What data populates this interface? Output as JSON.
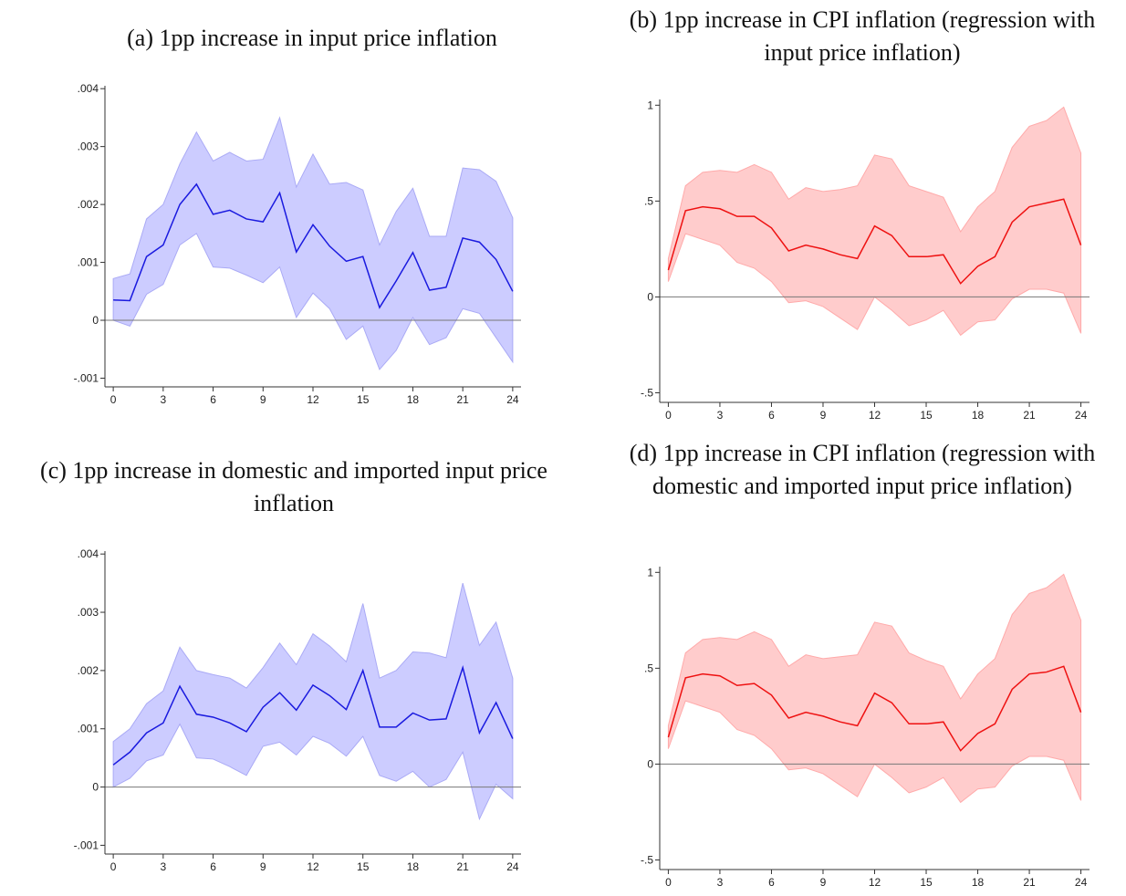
{
  "chart_data": [
    {
      "type": "band-line",
      "title": "(a) 1pp increase in input price inflation",
      "x": [
        0,
        1,
        2,
        3,
        4,
        5,
        6,
        7,
        8,
        9,
        10,
        11,
        12,
        13,
        14,
        15,
        16,
        17,
        18,
        19,
        20,
        21,
        22,
        23,
        24
      ],
      "values": [
        0.00035,
        0.00034,
        0.0011,
        0.0013,
        0.002,
        0.00235,
        0.00183,
        0.0019,
        0.00175,
        0.0017,
        0.0022,
        0.00118,
        0.00165,
        0.00128,
        0.00102,
        0.0011,
        0.00022,
        0.00068,
        0.00117,
        0.00052,
        0.00057,
        0.00142,
        0.00135,
        0.00105,
        0.0005
      ],
      "upper": [
        0.00072,
        0.0008,
        0.00175,
        0.002,
        0.0027,
        0.00325,
        0.00275,
        0.0029,
        0.00275,
        0.00278,
        0.0035,
        0.0023,
        0.00287,
        0.00235,
        0.00238,
        0.00225,
        0.0013,
        0.00188,
        0.00228,
        0.00145,
        0.00145,
        0.00263,
        0.0026,
        0.0024,
        0.00177
      ],
      "lower": [
        0,
        -0.0001,
        0.00045,
        0.00062,
        0.0013,
        0.0015,
        0.00092,
        0.0009,
        0.00078,
        0.00065,
        0.00092,
        5e-05,
        0.00047,
        0.0002,
        -0.00033,
        -0.0001,
        -0.00085,
        -0.00052,
        5e-05,
        -0.00042,
        -0.0003,
        0.0002,
        0.00012,
        -0.0003,
        -0.00072
      ],
      "color": "#1a1adf",
      "band_color": "#ccccff",
      "band_edge": "#aaaaf5",
      "xlim": [
        -0.5,
        24.5
      ],
      "ylim": [
        -0.00115,
        0.00405
      ],
      "xticks": [
        0,
        3,
        6,
        9,
        12,
        15,
        18,
        21,
        24
      ],
      "yticks": [
        {
          "value": -0.001,
          "label": "-.001"
        },
        0,
        {
          "value": 0.001,
          "label": ".001"
        },
        {
          "value": 0.002,
          "label": ".002"
        },
        {
          "value": 0.003,
          "label": ".003"
        },
        {
          "value": 0.004,
          "label": ".004"
        }
      ],
      "zero_line": true
    },
    {
      "type": "band-line",
      "title": "(b) 1pp increase in CPI inflation (regression with input price inflation)",
      "x": [
        0,
        1,
        2,
        3,
        4,
        5,
        6,
        7,
        8,
        9,
        10,
        11,
        12,
        13,
        14,
        15,
        16,
        17,
        18,
        19,
        20,
        21,
        22,
        23,
        24
      ],
      "values": [
        0.14,
        0.45,
        0.47,
        0.46,
        0.42,
        0.42,
        0.36,
        0.24,
        0.27,
        0.25,
        0.22,
        0.2,
        0.37,
        0.32,
        0.21,
        0.21,
        0.22,
        0.07,
        0.16,
        0.21,
        0.39,
        0.47,
        0.49,
        0.51,
        0.27
      ],
      "upper": [
        0.2,
        0.58,
        0.65,
        0.66,
        0.65,
        0.69,
        0.65,
        0.51,
        0.57,
        0.55,
        0.56,
        0.58,
        0.74,
        0.72,
        0.58,
        0.55,
        0.52,
        0.34,
        0.47,
        0.55,
        0.78,
        0.89,
        0.92,
        0.99,
        0.75
      ],
      "lower": [
        0.08,
        0.33,
        0.3,
        0.27,
        0.18,
        0.15,
        0.08,
        -0.03,
        -0.02,
        -0.05,
        -0.11,
        -0.17,
        0,
        -0.07,
        -0.15,
        -0.12,
        -0.07,
        -0.2,
        -0.13,
        -0.12,
        -0.01,
        0.04,
        0.04,
        0.02,
        -0.19
      ],
      "color": "#ee1111",
      "band_color": "#ffcccc",
      "band_edge": "#ffaaaa",
      "xlim": [
        -0.5,
        24.5
      ],
      "ylim": [
        -0.55,
        1.03
      ],
      "xticks": [
        0,
        3,
        6,
        9,
        12,
        15,
        18,
        21,
        24
      ],
      "yticks": [
        {
          "value": -0.5,
          "label": "-.5"
        },
        0,
        {
          "value": 0.5,
          "label": ".5"
        },
        1
      ],
      "zero_line": true
    },
    {
      "type": "band-line",
      "title": "(c) 1pp increase in domestic and imported input price inflation",
      "x": [
        0,
        1,
        2,
        3,
        4,
        5,
        6,
        7,
        8,
        9,
        10,
        11,
        12,
        13,
        14,
        15,
        16,
        17,
        18,
        19,
        20,
        21,
        22,
        23,
        24
      ],
      "values": [
        0.00038,
        0.0006,
        0.00093,
        0.0011,
        0.00173,
        0.00125,
        0.0012,
        0.0011,
        0.00095,
        0.00137,
        0.00162,
        0.00132,
        0.00175,
        0.00157,
        0.00133,
        0.002,
        0.00103,
        0.00103,
        0.00127,
        0.00115,
        0.00117,
        0.00205,
        0.00093,
        0.00145,
        0.00083
      ],
      "upper": [
        0.00078,
        0.001,
        0.00143,
        0.00165,
        0.0024,
        0.002,
        0.00193,
        0.00187,
        0.0017,
        0.00205,
        0.00247,
        0.0021,
        0.00263,
        0.00242,
        0.00215,
        0.00315,
        0.00187,
        0.002,
        0.00232,
        0.0023,
        0.00222,
        0.0035,
        0.00243,
        0.00283,
        0.00187
      ],
      "lower": [
        0,
        0.00015,
        0.00045,
        0.00055,
        0.00108,
        0.0005,
        0.00048,
        0.00035,
        0.0002,
        0.0007,
        0.00077,
        0.00055,
        0.00087,
        0.00075,
        0.00053,
        0.00087,
        0.0002,
        0.0001,
        0.00027,
        0,
        0.00013,
        0.0006,
        -0.00055,
        5e-05,
        -0.0002
      ],
      "color": "#1a1adf",
      "band_color": "#ccccff",
      "band_edge": "#aaaaf5",
      "xlim": [
        -0.5,
        24.5
      ],
      "ylim": [
        -0.00115,
        0.00405
      ],
      "xticks": [
        0,
        3,
        6,
        9,
        12,
        15,
        18,
        21,
        24
      ],
      "yticks": [
        {
          "value": -0.001,
          "label": "-.001"
        },
        0,
        {
          "value": 0.001,
          "label": ".001"
        },
        {
          "value": 0.002,
          "label": ".002"
        },
        {
          "value": 0.003,
          "label": ".003"
        },
        {
          "value": 0.004,
          "label": ".004"
        }
      ],
      "zero_line": true
    },
    {
      "type": "band-line",
      "title": "(d) 1pp increase in CPI inflation (regression with domestic and imported input price inflation)",
      "x": [
        0,
        1,
        2,
        3,
        4,
        5,
        6,
        7,
        8,
        9,
        10,
        11,
        12,
        13,
        14,
        15,
        16,
        17,
        18,
        19,
        20,
        21,
        22,
        23,
        24
      ],
      "values": [
        0.14,
        0.45,
        0.47,
        0.46,
        0.41,
        0.42,
        0.36,
        0.24,
        0.27,
        0.25,
        0.22,
        0.2,
        0.37,
        0.32,
        0.21,
        0.21,
        0.22,
        0.07,
        0.16,
        0.21,
        0.39,
        0.47,
        0.48,
        0.51,
        0.27
      ],
      "upper": [
        0.2,
        0.58,
        0.65,
        0.66,
        0.65,
        0.69,
        0.65,
        0.51,
        0.57,
        0.55,
        0.56,
        0.57,
        0.74,
        0.72,
        0.58,
        0.54,
        0.51,
        0.34,
        0.47,
        0.55,
        0.78,
        0.89,
        0.92,
        0.99,
        0.75
      ],
      "lower": [
        0.08,
        0.33,
        0.3,
        0.27,
        0.18,
        0.15,
        0.08,
        -0.03,
        -0.02,
        -0.05,
        -0.11,
        -0.17,
        0,
        -0.07,
        -0.15,
        -0.12,
        -0.07,
        -0.2,
        -0.13,
        -0.12,
        -0.01,
        0.04,
        0.04,
        0.02,
        -0.19
      ],
      "color": "#ee1111",
      "band_color": "#ffcccc",
      "band_edge": "#ffaaaa",
      "xlim": [
        -0.5,
        24.5
      ],
      "ylim": [
        -0.55,
        1.03
      ],
      "xticks": [
        0,
        3,
        6,
        9,
        12,
        15,
        18,
        21,
        24
      ],
      "yticks": [
        {
          "value": -0.5,
          "label": "-.5"
        },
        0,
        {
          "value": 0.5,
          "label": ".5"
        },
        1
      ],
      "zero_line": true
    }
  ]
}
